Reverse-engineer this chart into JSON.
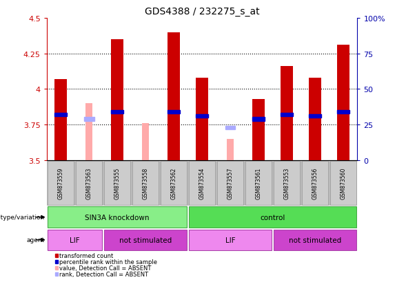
{
  "title": "GDS4388 / 232275_s_at",
  "samples": [
    "GSM873559",
    "GSM873563",
    "GSM873555",
    "GSM873558",
    "GSM873562",
    "GSM873554",
    "GSM873557",
    "GSM873561",
    "GSM873553",
    "GSM873556",
    "GSM873560"
  ],
  "bar_values": [
    4.07,
    null,
    4.35,
    null,
    4.4,
    4.08,
    null,
    3.93,
    4.16,
    4.08,
    4.31
  ],
  "absent_values": [
    null,
    3.9,
    null,
    3.76,
    null,
    null,
    3.65,
    null,
    null,
    null,
    null
  ],
  "blue_ranks": [
    3.82,
    null,
    3.84,
    null,
    3.84,
    3.81,
    null,
    3.79,
    3.82,
    3.81,
    3.84
  ],
  "absent_ranks": [
    null,
    3.79,
    null,
    null,
    null,
    null,
    3.73,
    null,
    null,
    null,
    null
  ],
  "ymin": 3.5,
  "ymax": 4.5,
  "yticks": [
    3.5,
    3.75,
    4.0,
    4.25,
    4.5
  ],
  "ytick_labels": [
    "3.5",
    "3.75",
    "4",
    "4.25",
    "4.5"
  ],
  "right_ytick_pcts": [
    0,
    25,
    50,
    75,
    100
  ],
  "right_ytick_labels": [
    "0",
    "25",
    "50",
    "75",
    "100%"
  ],
  "bar_color": "#cc0000",
  "absent_bar_color": "#ffaaaa",
  "blue_color": "#0000cc",
  "absent_blue_color": "#aaaaff",
  "bar_width": 0.45,
  "genotype_groups": [
    {
      "label": "SIN3A knockdown",
      "start": 0,
      "end": 4,
      "color": "#88ee88"
    },
    {
      "label": "control",
      "start": 5,
      "end": 10,
      "color": "#55dd55"
    }
  ],
  "agent_groups": [
    {
      "label": "LIF",
      "start": 0,
      "end": 1,
      "color": "#ee88ee"
    },
    {
      "label": "not stimulated",
      "start": 2,
      "end": 4,
      "color": "#cc44cc"
    },
    {
      "label": "LIF",
      "start": 5,
      "end": 7,
      "color": "#ee88ee"
    },
    {
      "label": "not stimulated",
      "start": 8,
      "end": 10,
      "color": "#cc44cc"
    }
  ],
  "legend_items": [
    {
      "label": "transformed count",
      "color": "#cc0000"
    },
    {
      "label": "percentile rank within the sample",
      "color": "#0000cc"
    },
    {
      "label": "value, Detection Call = ABSENT",
      "color": "#ffaaaa"
    },
    {
      "label": "rank, Detection Call = ABSENT",
      "color": "#aaaaff"
    }
  ],
  "ylabel_color": "#cc0000",
  "right_ylabel_color": "#0000aa",
  "grid_dotted_at": [
    3.75,
    4.0,
    4.25
  ]
}
